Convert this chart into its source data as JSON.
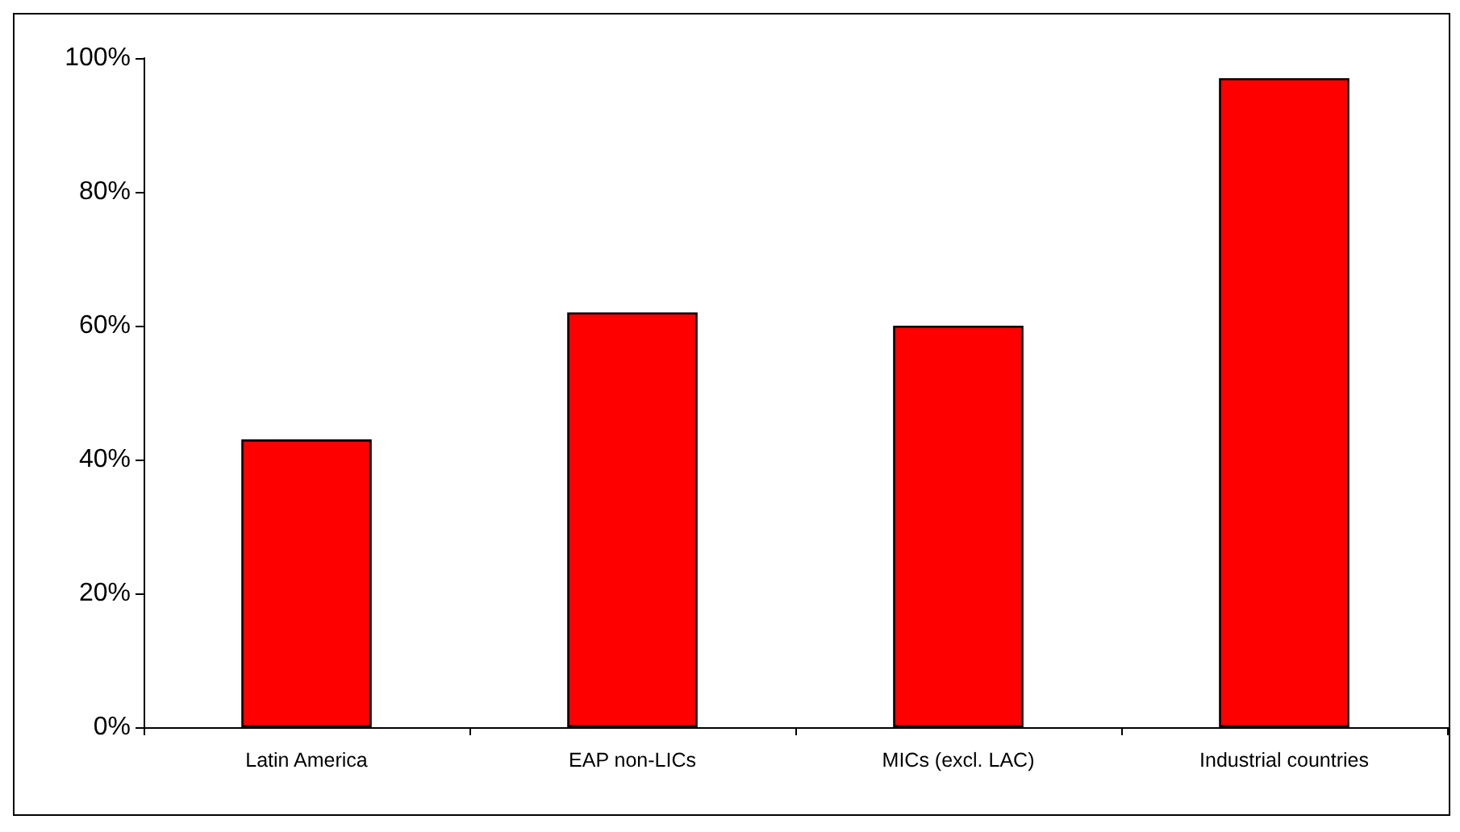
{
  "chart_data": {
    "type": "bar",
    "categories": [
      "Latin America",
      "EAP non-LICs",
      "MICs (excl. LAC)",
      "Industrial countries"
    ],
    "values": [
      43,
      62,
      60,
      97
    ],
    "color": "#ff0000",
    "ylim": [
      0,
      100
    ],
    "yticks": [
      {
        "value": 0,
        "label": "0%"
      },
      {
        "value": 20,
        "label": "20%"
      },
      {
        "value": 40,
        "label": "40%"
      },
      {
        "value": 60,
        "label": "60%"
      },
      {
        "value": 80,
        "label": "80%"
      },
      {
        "value": 100,
        "label": "100%"
      }
    ],
    "grid": false
  }
}
